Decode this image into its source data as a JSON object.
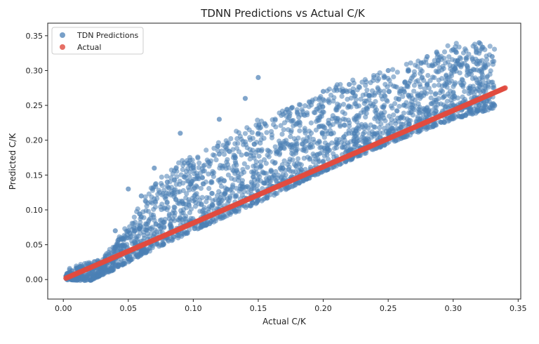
{
  "chart_data": {
    "type": "scatter",
    "title": "TDNN Predictions vs Actual C/K",
    "xlabel": "Actual C/K",
    "ylabel": "Predicted C/K",
    "xlim": [
      -0.012,
      0.352
    ],
    "ylim": [
      -0.028,
      0.368
    ],
    "xticks": [
      0.0,
      0.05,
      0.1,
      0.15,
      0.2,
      0.25,
      0.3,
      0.35
    ],
    "xtick_labels": [
      "0.00",
      "0.05",
      "0.10",
      "0.15",
      "0.20",
      "0.25",
      "0.30",
      "0.35"
    ],
    "yticks": [
      0.0,
      0.05,
      0.1,
      0.15,
      0.2,
      0.25,
      0.3,
      0.35
    ],
    "ytick_labels": [
      "0.00",
      "0.05",
      "0.10",
      "0.15",
      "0.20",
      "0.25",
      "0.30",
      "0.35"
    ],
    "grid": false,
    "legend_position": "top-left",
    "series": [
      {
        "name": "TDN Predictions",
        "color": "#4a7fb5",
        "description_points": [
          [
            0.002,
            0.005
          ],
          [
            0.01,
            0.0
          ],
          [
            0.02,
            0.0
          ],
          [
            0.03,
            0.01
          ],
          [
            0.04,
            0.02
          ],
          [
            0.05,
            0.03
          ],
          [
            0.06,
            0.04
          ],
          [
            0.08,
            0.06
          ],
          [
            0.1,
            0.08
          ],
          [
            0.12,
            0.1
          ],
          [
            0.15,
            0.12
          ],
          [
            0.18,
            0.15
          ],
          [
            0.2,
            0.17
          ],
          [
            0.22,
            0.18
          ],
          [
            0.25,
            0.21
          ],
          [
            0.28,
            0.23
          ],
          [
            0.3,
            0.25
          ],
          [
            0.32,
            0.25
          ],
          [
            0.33,
            0.25
          ],
          [
            0.05,
            0.07
          ],
          [
            0.06,
            0.09
          ],
          [
            0.08,
            0.14
          ],
          [
            0.1,
            0.16
          ],
          [
            0.12,
            0.18
          ],
          [
            0.15,
            0.21
          ],
          [
            0.18,
            0.24
          ],
          [
            0.2,
            0.27
          ],
          [
            0.22,
            0.28
          ],
          [
            0.25,
            0.3
          ],
          [
            0.28,
            0.32
          ],
          [
            0.3,
            0.33
          ],
          [
            0.32,
            0.34
          ],
          [
            0.33,
            0.32
          ],
          [
            0.07,
            0.16
          ],
          [
            0.09,
            0.21
          ],
          [
            0.12,
            0.23
          ],
          [
            0.14,
            0.26
          ],
          [
            0.15,
            0.29
          ],
          [
            0.04,
            0.07
          ],
          [
            0.05,
            0.13
          ],
          [
            0.06,
            0.12
          ]
        ],
        "envelope_upper": [
          [
            0.0,
            0.015
          ],
          [
            0.03,
            0.03
          ],
          [
            0.05,
            0.08
          ],
          [
            0.07,
            0.14
          ],
          [
            0.09,
            0.17
          ],
          [
            0.12,
            0.2
          ],
          [
            0.15,
            0.23
          ],
          [
            0.18,
            0.25
          ],
          [
            0.21,
            0.28
          ],
          [
            0.25,
            0.3
          ],
          [
            0.28,
            0.32
          ],
          [
            0.3,
            0.34
          ],
          [
            0.33,
            0.34
          ]
        ],
        "envelope_lower": [
          [
            0.0,
            0.0
          ],
          [
            0.02,
            -0.002
          ],
          [
            0.04,
            0.015
          ],
          [
            0.06,
            0.035
          ],
          [
            0.1,
            0.07
          ],
          [
            0.15,
            0.11
          ],
          [
            0.2,
            0.155
          ],
          [
            0.25,
            0.195
          ],
          [
            0.3,
            0.23
          ],
          [
            0.33,
            0.245
          ]
        ]
      },
      {
        "name": "Actual",
        "color": "#e04b3f",
        "line": {
          "x": [
            0.002,
            0.34
          ],
          "y": [
            0.002,
            0.275
          ]
        }
      }
    ]
  }
}
